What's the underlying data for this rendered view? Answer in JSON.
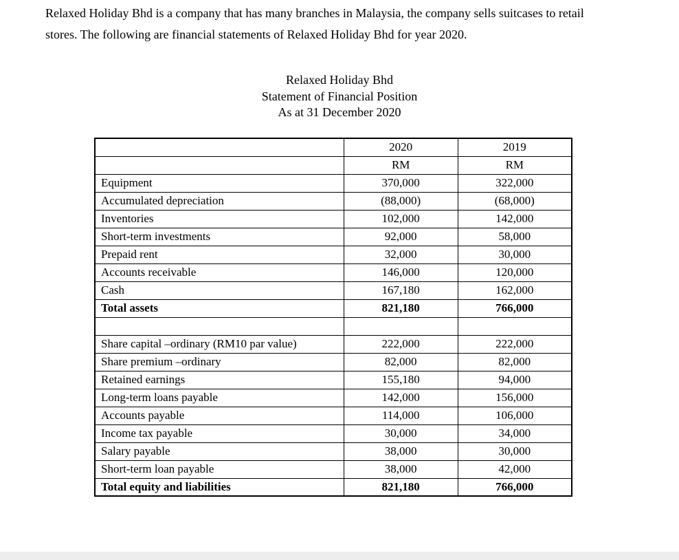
{
  "intro": {
    "line1": "Relaxed Holiday Bhd is a company that has many branches in Malaysia, the company sells suitcases to retail",
    "line2": "stores. The following are financial statements of Relaxed Holiday Bhd for year 2020."
  },
  "title": {
    "company": "Relaxed Holiday Bhd",
    "statement": "Statement of Financial Position",
    "date": "As at 31 December 2020"
  },
  "table": {
    "col_headers": [
      "2020",
      "2019"
    ],
    "currency_row": [
      "RM",
      "RM"
    ],
    "rows": [
      {
        "label": "Equipment",
        "y2020": "370,000",
        "y2019": "322,000",
        "bold": false,
        "blank": false
      },
      {
        "label": "Accumulated depreciation",
        "y2020": "(88,000)",
        "y2019": "(68,000)",
        "bold": false,
        "blank": false
      },
      {
        "label": "Inventories",
        "y2020": "102,000",
        "y2019": "142,000",
        "bold": false,
        "blank": false
      },
      {
        "label": "Short-term investments",
        "y2020": "92,000",
        "y2019": "58,000",
        "bold": false,
        "blank": false
      },
      {
        "label": "Prepaid rent",
        "y2020": "32,000",
        "y2019": "30,000",
        "bold": false,
        "blank": false
      },
      {
        "label": "Accounts receivable",
        "y2020": "146,000",
        "y2019": "120,000",
        "bold": false,
        "blank": false
      },
      {
        "label": "Cash",
        "y2020": "167,180",
        "y2019": "162,000",
        "bold": false,
        "blank": false
      },
      {
        "label": "Total assets",
        "y2020": "821,180",
        "y2019": "766,000",
        "bold": true,
        "blank": false
      },
      {
        "label": "",
        "y2020": "",
        "y2019": "",
        "bold": false,
        "blank": true
      },
      {
        "label": "Share capital –ordinary (RM10 par value)",
        "y2020": "222,000",
        "y2019": "222,000",
        "bold": false,
        "blank": false
      },
      {
        "label": "Share premium –ordinary",
        "y2020": "82,000",
        "y2019": "82,000",
        "bold": false,
        "blank": false
      },
      {
        "label": "Retained earnings",
        "y2020": "155,180",
        "y2019": "94,000",
        "bold": false,
        "blank": false
      },
      {
        "label": "Long-term loans payable",
        "y2020": "142,000",
        "y2019": "156,000",
        "bold": false,
        "blank": false
      },
      {
        "label": "Accounts payable",
        "y2020": "114,000",
        "y2019": "106,000",
        "bold": false,
        "blank": false
      },
      {
        "label": "Income tax payable",
        "y2020": "30,000",
        "y2019": "34,000",
        "bold": false,
        "blank": false
      },
      {
        "label": "Salary payable",
        "y2020": "38,000",
        "y2019": "30,000",
        "bold": false,
        "blank": false
      },
      {
        "label": "Short-term loan payable",
        "y2020": "38,000",
        "y2019": "42,000",
        "bold": false,
        "blank": false
      },
      {
        "label": "Total equity and liabilities",
        "y2020": "821,180",
        "y2019": "766,000",
        "bold": true,
        "blank": false
      }
    ]
  }
}
